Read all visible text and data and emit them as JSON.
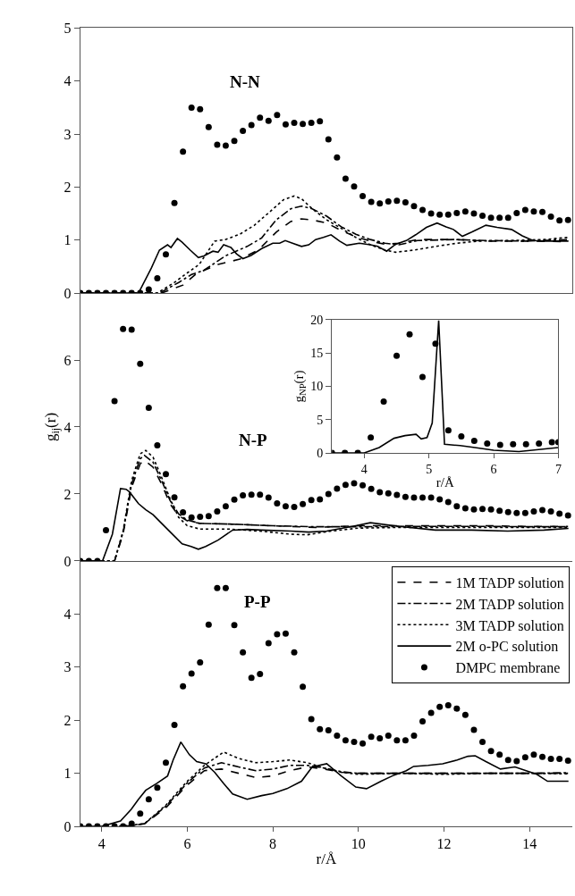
{
  "chart_data": [
    {
      "type": "line",
      "title": "N-N",
      "xlim": [
        3.5,
        15
      ],
      "ylim": [
        0,
        5
      ],
      "yticks": [
        0,
        1,
        2,
        3,
        4,
        5
      ],
      "tick_labels": "y",
      "grid": false,
      "series": [
        {
          "type": "line",
          "color": "#000000",
          "line_style": "dashed",
          "marker": "none",
          "x": [
            3.5,
            5.4,
            5.9,
            6.22,
            6.72,
            7.23,
            7.66,
            8.08,
            8.42,
            8.67,
            8.92,
            9.26,
            9.6,
            9.94,
            10.28,
            10.62,
            10.95,
            11.38,
            12.22,
            13.07,
            13.92,
            14.91
          ],
          "values": [
            0,
            0,
            0.15,
            0.37,
            0.54,
            0.64,
            0.81,
            1.15,
            1.35,
            1.4,
            1.38,
            1.32,
            1.18,
            1.06,
            0.98,
            0.92,
            0.94,
            1.01,
            1.01,
            0.98,
            0.98,
            0.97
          ]
        },
        {
          "type": "line",
          "color": "#000000",
          "line_style": "dashdot",
          "marker": "none",
          "x": [
            3.5,
            5.35,
            5.8,
            6.1,
            6.39,
            6.89,
            7.4,
            7.74,
            8.08,
            8.42,
            8.67,
            8.92,
            9.26,
            9.6,
            9.94,
            10.28,
            10.62,
            10.95,
            11.38,
            12.22,
            13.07,
            13.92,
            14.91
          ],
          "values": [
            0,
            0,
            0.2,
            0.35,
            0.43,
            0.7,
            0.88,
            1.04,
            1.38,
            1.59,
            1.64,
            1.59,
            1.45,
            1.25,
            1.11,
            1.01,
            0.94,
            0.91,
            0.99,
            1.01,
            0.99,
            0.98,
            1.01
          ]
        },
        {
          "type": "line",
          "color": "#000000",
          "line_style": "dotted",
          "marker": "none",
          "x": [
            3.5,
            5.3,
            5.7,
            6.0,
            6.28,
            6.64,
            6.89,
            7.23,
            7.57,
            7.91,
            8.25,
            8.5,
            8.67,
            8.92,
            9.26,
            9.6,
            9.94,
            10.28,
            10.62,
            10.87,
            11.29,
            11.8,
            12.3,
            12.82,
            13.49,
            14.34,
            14.91
          ],
          "values": [
            0,
            0,
            0.2,
            0.38,
            0.54,
            0.98,
            1.01,
            1.11,
            1.28,
            1.52,
            1.76,
            1.83,
            1.78,
            1.59,
            1.38,
            1.22,
            1.05,
            0.91,
            0.81,
            0.77,
            0.81,
            0.88,
            0.94,
            0.98,
            0.99,
            1.01,
            1.05
          ]
        },
        {
          "type": "line",
          "color": "#000000",
          "line_style": "solid",
          "marker": "none",
          "x": [
            3.5,
            4.86,
            5.16,
            5.35,
            5.54,
            5.62,
            5.77,
            5.88,
            6.07,
            6.26,
            6.39,
            6.6,
            6.72,
            6.85,
            7.02,
            7.15,
            7.3,
            7.49,
            7.74,
            8.0,
            8.16,
            8.29,
            8.46,
            8.67,
            8.84,
            9.0,
            9.18,
            9.36,
            9.56,
            9.73,
            10.02,
            10.28,
            10.45,
            10.66,
            10.87,
            11.12,
            11.34,
            11.59,
            11.84,
            12.05,
            12.22,
            12.43,
            12.65,
            12.98,
            13.24,
            13.58,
            13.83,
            14.08,
            14.34,
            14.68,
            14.91
          ],
          "values": [
            0,
            0,
            0.47,
            0.81,
            0.91,
            0.86,
            1.03,
            0.96,
            0.81,
            0.67,
            0.7,
            0.79,
            0.77,
            0.91,
            0.86,
            0.74,
            0.65,
            0.71,
            0.84,
            0.94,
            0.94,
            0.99,
            0.94,
            0.88,
            0.91,
            1.01,
            1.05,
            1.1,
            0.98,
            0.9,
            0.94,
            0.91,
            0.88,
            0.79,
            0.92,
            0.99,
            1.1,
            1.24,
            1.32,
            1.25,
            1.2,
            1.07,
            1.15,
            1.28,
            1.24,
            1.2,
            1.08,
            0.99,
            0.98,
            0.98,
            0.98
          ]
        },
        {
          "type": "scatter",
          "color": "#000000",
          "marker": "circle",
          "x": [
            3.5,
            3.7,
            3.9,
            4.1,
            4.3,
            4.5,
            4.7,
            4.9,
            5.1,
            5.3,
            5.5,
            5.7,
            5.9,
            6.1,
            6.3,
            6.5,
            6.7,
            6.9,
            7.1,
            7.3,
            7.5,
            7.7,
            7.9,
            8.1,
            8.3,
            8.5,
            8.7,
            8.9,
            9.1,
            9.3,
            9.5,
            9.7,
            9.9,
            10.1,
            10.3,
            10.5,
            10.7,
            10.9,
            11.1,
            11.3,
            11.5,
            11.7,
            11.9,
            12.1,
            12.3,
            12.5,
            12.7,
            12.9,
            13.1,
            13.3,
            13.5,
            13.7,
            13.9,
            14.1,
            14.3,
            14.5,
            14.7,
            14.9
          ],
          "values": [
            0,
            0,
            0,
            0,
            0,
            0,
            0,
            0,
            0.07,
            0.28,
            0.73,
            1.7,
            2.67,
            3.5,
            3.47,
            3.13,
            2.8,
            2.78,
            2.87,
            3.06,
            3.17,
            3.31,
            3.25,
            3.36,
            3.18,
            3.21,
            3.19,
            3.21,
            3.24,
            2.9,
            2.56,
            2.16,
            2.01,
            1.83,
            1.72,
            1.69,
            1.73,
            1.74,
            1.71,
            1.64,
            1.57,
            1.5,
            1.48,
            1.48,
            1.51,
            1.54,
            1.5,
            1.46,
            1.42,
            1.42,
            1.42,
            1.51,
            1.57,
            1.54,
            1.53,
            1.44,
            1.37,
            1.38
          ]
        }
      ]
    },
    {
      "type": "line",
      "title": "N-P",
      "ylabel": "g$_{ij}$(r)",
      "xlim": [
        3.5,
        15
      ],
      "ylim": [
        0,
        8
      ],
      "yticks": [
        0,
        2,
        4,
        6
      ],
      "tick_labels": "y",
      "grid": false,
      "series": [
        {
          "type": "line",
          "color": "#000000",
          "line_style": "dashed",
          "marker": "none",
          "x": [
            3.5,
            4.3,
            4.5,
            4.7,
            4.9,
            5.0,
            5.2,
            5.4,
            5.6,
            5.8,
            6.0,
            6.3,
            7.0,
            8.0,
            9.0,
            10.0,
            11.0,
            12.0,
            13.0,
            14.0,
            14.9
          ],
          "values": [
            0,
            0,
            0.8,
            2.2,
            2.9,
            3.0,
            2.8,
            2.3,
            1.7,
            1.35,
            1.2,
            1.12,
            1.1,
            1.05,
            1.0,
            1.05,
            1.05,
            1.05,
            1.05,
            1.03,
            1.03
          ]
        },
        {
          "type": "line",
          "color": "#000000",
          "line_style": "dashdot",
          "marker": "none",
          "x": [
            3.5,
            4.3,
            4.5,
            4.7,
            4.9,
            5.0,
            5.2,
            5.4,
            5.6,
            5.8,
            6.0,
            6.3,
            7.0,
            8.0,
            9.0,
            10.0,
            11.0,
            12.0,
            13.0,
            14.0,
            14.9
          ],
          "values": [
            0,
            0,
            0.85,
            2.3,
            3.05,
            3.15,
            2.95,
            2.4,
            1.8,
            1.4,
            1.22,
            1.12,
            1.1,
            1.05,
            1.02,
            1.02,
            1.03,
            1.03,
            1.03,
            1.02,
            1.02
          ]
        },
        {
          "type": "line",
          "color": "#000000",
          "line_style": "dotted",
          "marker": "none",
          "x": [
            3.5,
            4.3,
            4.5,
            4.7,
            4.9,
            5.03,
            5.2,
            5.4,
            5.6,
            5.8,
            6.0,
            6.3,
            7.0,
            7.8,
            8.4,
            8.8,
            9.3,
            10.0,
            11.0,
            12.0,
            13.0,
            14.0,
            14.9
          ],
          "values": [
            0,
            0,
            0.9,
            2.4,
            3.2,
            3.3,
            3.1,
            2.5,
            1.85,
            1.3,
            1.05,
            0.95,
            0.95,
            0.88,
            0.8,
            0.78,
            0.88,
            0.98,
            1.0,
            1.0,
            1.0,
            1.0,
            1.0
          ]
        },
        {
          "type": "line",
          "color": "#000000",
          "line_style": "solid",
          "marker": "none",
          "x": [
            3.5,
            4.02,
            4.25,
            4.44,
            4.57,
            4.65,
            4.86,
            5.03,
            5.2,
            5.37,
            5.62,
            5.88,
            6.09,
            6.26,
            6.43,
            6.72,
            7.06,
            7.4,
            7.74,
            8.42,
            8.84,
            9.26,
            9.94,
            10.28,
            10.95,
            11.8,
            12.65,
            13.49,
            14.34,
            14.91
          ],
          "values": [
            0,
            0,
            0.8,
            2.16,
            2.14,
            2.06,
            1.71,
            1.53,
            1.38,
            1.16,
            0.84,
            0.51,
            0.43,
            0.35,
            0.43,
            0.62,
            0.92,
            0.94,
            0.92,
            0.89,
            0.86,
            0.89,
            1.05,
            1.14,
            1.03,
            0.92,
            0.92,
            0.89,
            0.92,
            0.97
          ]
        },
        {
          "type": "scatter",
          "color": "#000000",
          "marker": "circle",
          "x": [
            3.5,
            3.7,
            3.9,
            4.1,
            4.3,
            4.5,
            4.7,
            4.9,
            5.1,
            5.3,
            5.5,
            5.7,
            5.9,
            6.1,
            6.3,
            6.5,
            6.7,
            6.9,
            7.1,
            7.3,
            7.5,
            7.7,
            7.9,
            8.1,
            8.3,
            8.5,
            8.7,
            8.9,
            9.1,
            9.3,
            9.5,
            9.7,
            9.9,
            10.1,
            10.3,
            10.5,
            10.7,
            10.9,
            11.1,
            11.3,
            11.5,
            11.7,
            11.9,
            12.1,
            12.3,
            12.5,
            12.7,
            12.9,
            13.1,
            13.3,
            13.5,
            13.7,
            13.9,
            14.1,
            14.3,
            14.5,
            14.7,
            14.9
          ],
          "values": [
            0,
            0,
            0,
            0.92,
            4.77,
            6.93,
            6.91,
            5.89,
            4.57,
            3.45,
            2.59,
            1.9,
            1.45,
            1.3,
            1.32,
            1.34,
            1.48,
            1.63,
            1.83,
            1.96,
            1.98,
            1.98,
            1.89,
            1.72,
            1.63,
            1.61,
            1.7,
            1.82,
            1.84,
            2.0,
            2.16,
            2.27,
            2.32,
            2.26,
            2.15,
            2.05,
            2.02,
            1.97,
            1.91,
            1.89,
            1.89,
            1.89,
            1.84,
            1.76,
            1.63,
            1.57,
            1.54,
            1.55,
            1.54,
            1.5,
            1.46,
            1.43,
            1.43,
            1.48,
            1.52,
            1.48,
            1.41,
            1.36
          ]
        }
      ]
    },
    {
      "type": "line",
      "title": "P-P",
      "xlabel": "r/Å",
      "xlim": [
        3.5,
        15
      ],
      "ylim": [
        0,
        5
      ],
      "xticks": [
        4,
        6,
        8,
        10,
        12,
        14
      ],
      "yticks": [
        0,
        1,
        2,
        3,
        4
      ],
      "legend": "top right",
      "grid": false,
      "series": [
        {
          "name": "1M TADP solution",
          "type": "line",
          "color": "#000000",
          "line_style": "dashed",
          "marker": "none",
          "x": [
            4.5,
            5.0,
            5.5,
            6.0,
            6.4,
            6.8,
            7.2,
            7.6,
            8.0,
            8.4,
            8.8,
            9.2,
            9.6,
            10.0,
            11.0,
            12.0,
            13.0,
            14.0,
            14.9
          ],
          "values": [
            0,
            0.05,
            0.35,
            0.78,
            1.05,
            1.08,
            1.0,
            0.92,
            0.95,
            1.05,
            1.12,
            1.08,
            1.02,
            1.0,
            1.0,
            1.0,
            1.0,
            1.0,
            1.0
          ]
        },
        {
          "name": "2M TADP solution",
          "type": "line",
          "color": "#000000",
          "line_style": "dashdot",
          "marker": "none",
          "x": [
            4.6,
            5.0,
            5.5,
            6.0,
            6.4,
            6.8,
            7.2,
            7.6,
            8.0,
            8.4,
            8.8,
            9.2,
            9.6,
            10.0,
            11.0,
            12.0,
            13.0,
            14.0,
            14.9
          ],
          "values": [
            0,
            0.05,
            0.38,
            0.82,
            1.1,
            1.2,
            1.12,
            1.05,
            1.08,
            1.15,
            1.15,
            1.1,
            1.03,
            1.0,
            1.0,
            1.0,
            1.0,
            1.0,
            1.01
          ]
        },
        {
          "name": "3M TADP solution",
          "type": "line",
          "color": "#000000",
          "line_style": "dotted",
          "marker": "none",
          "x": [
            4.4,
            5.0,
            5.5,
            6.0,
            6.4,
            6.85,
            7.2,
            7.6,
            8.0,
            8.4,
            8.8,
            9.2,
            9.6,
            10.0,
            11.0,
            12.0,
            13.0,
            14.0,
            14.9
          ],
          "values": [
            0,
            0.05,
            0.4,
            0.85,
            1.15,
            1.4,
            1.28,
            1.2,
            1.22,
            1.25,
            1.2,
            1.1,
            1.02,
            0.98,
            1.0,
            0.98,
            1.0,
            1.0,
            0.99
          ]
        },
        {
          "name": "2M o-PC solution",
          "type": "line",
          "color": "#000000",
          "line_style": "solid",
          "marker": "none",
          "x": [
            3.5,
            4.0,
            4.44,
            4.69,
            4.86,
            5.03,
            5.29,
            5.54,
            5.67,
            5.85,
            6.05,
            6.22,
            6.43,
            6.64,
            6.85,
            7.06,
            7.4,
            7.74,
            8.0,
            8.33,
            8.67,
            8.92,
            9.26,
            9.6,
            9.94,
            10.19,
            10.53,
            10.79,
            11.12,
            11.29,
            11.63,
            11.97,
            12.31,
            12.56,
            12.73,
            12.98,
            13.32,
            13.66,
            13.92,
            14.17,
            14.42,
            14.91
          ],
          "values": [
            0,
            0,
            0.1,
            0.32,
            0.51,
            0.68,
            0.81,
            0.95,
            1.25,
            1.59,
            1.35,
            1.22,
            1.18,
            1.02,
            0.81,
            0.61,
            0.51,
            0.58,
            0.62,
            0.71,
            0.85,
            1.12,
            1.18,
            0.95,
            0.74,
            0.71,
            0.85,
            0.95,
            1.05,
            1.13,
            1.15,
            1.18,
            1.25,
            1.32,
            1.33,
            1.22,
            1.08,
            1.12,
            1.05,
            0.98,
            0.85,
            0.85
          ]
        },
        {
          "name": "DMPC membrane",
          "type": "scatter",
          "color": "#000000",
          "marker": "circle",
          "x": [
            3.5,
            3.7,
            3.9,
            4.1,
            4.3,
            4.5,
            4.7,
            4.9,
            5.1,
            5.3,
            5.5,
            5.7,
            5.9,
            6.1,
            6.3,
            6.5,
            6.7,
            6.9,
            7.1,
            7.3,
            7.5,
            7.7,
            7.9,
            8.1,
            8.3,
            8.5,
            8.7,
            8.9,
            9.1,
            9.3,
            9.5,
            9.7,
            9.9,
            10.1,
            10.3,
            10.5,
            10.7,
            10.9,
            11.1,
            11.3,
            11.5,
            11.7,
            11.9,
            12.1,
            12.3,
            12.5,
            12.7,
            12.9,
            13.1,
            13.3,
            13.5,
            13.7,
            13.9,
            14.1,
            14.3,
            14.5,
            14.7,
            14.9
          ],
          "values": [
            0,
            0,
            0,
            0,
            0,
            0,
            0.05,
            0.24,
            0.51,
            0.73,
            1.2,
            1.91,
            2.64,
            2.88,
            3.09,
            3.8,
            4.49,
            4.49,
            3.79,
            3.28,
            2.8,
            2.87,
            3.45,
            3.62,
            3.63,
            3.28,
            2.63,
            2.02,
            1.83,
            1.81,
            1.71,
            1.62,
            1.59,
            1.56,
            1.69,
            1.66,
            1.71,
            1.62,
            1.62,
            1.71,
            1.98,
            2.14,
            2.25,
            2.28,
            2.22,
            2.1,
            1.82,
            1.59,
            1.42,
            1.35,
            1.25,
            1.23,
            1.3,
            1.35,
            1.31,
            1.27,
            1.27,
            1.24
          ]
        }
      ]
    },
    {
      "type": "line",
      "xlabel": "r/Å",
      "ylabel": "g$_{NP}$(r)",
      "xlim": [
        3.5,
        7
      ],
      "ylim": [
        0,
        20
      ],
      "xticks": [
        4,
        5,
        6,
        7
      ],
      "yticks": [
        0,
        5,
        10,
        15,
        20
      ],
      "grid": false,
      "series": [
        {
          "type": "line",
          "color": "#000000",
          "line_style": "solid",
          "marker": "none",
          "x": [
            3.5,
            4.0,
            4.23,
            4.46,
            4.63,
            4.8,
            4.88,
            4.97,
            5.05,
            5.15,
            5.24,
            5.48,
            5.71,
            6.0,
            6.39,
            7.0
          ],
          "values": [
            0,
            0,
            0.8,
            2.2,
            2.6,
            2.8,
            2.1,
            2.3,
            4.5,
            19.9,
            1.3,
            1.1,
            0.8,
            0.4,
            0.2,
            0.8
          ]
        },
        {
          "type": "scatter",
          "color": "#000000",
          "marker": "circle",
          "x": [
            3.5,
            3.7,
            3.9,
            4.1,
            4.3,
            4.5,
            4.7,
            4.9,
            5.1,
            5.3,
            5.5,
            5.7,
            5.9,
            6.1,
            6.3,
            6.5,
            6.7,
            6.9,
            7.0
          ],
          "values": [
            0,
            0,
            0,
            2.3,
            7.7,
            14.6,
            17.8,
            11.4,
            16.4,
            3.4,
            2.5,
            1.8,
            1.4,
            1.2,
            1.3,
            1.3,
            1.4,
            1.6,
            1.6
          ]
        }
      ]
    }
  ]
}
